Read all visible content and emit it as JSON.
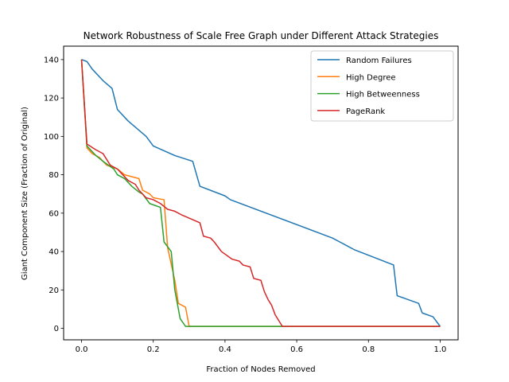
{
  "chart_data": {
    "type": "line",
    "title": "Network Robustness of Scale Free Graph under Different Attack Strategies",
    "xlabel": "Fraction of Nodes Removed",
    "ylabel": "Giant Component Size (Fraction of Original)",
    "xlim": [
      -0.05,
      1.05
    ],
    "ylim": [
      -6,
      147
    ],
    "xticks": [
      0.0,
      0.2,
      0.4,
      0.6,
      0.8,
      1.0
    ],
    "xtick_labels": [
      "0.0",
      "0.2",
      "0.4",
      "0.6",
      "0.8",
      "1.0"
    ],
    "yticks": [
      0,
      20,
      40,
      60,
      80,
      100,
      120,
      140
    ],
    "ytick_labels": [
      "0",
      "20",
      "40",
      "60",
      "80",
      "100",
      "120",
      "140"
    ],
    "grid": false,
    "legend_position": "top-right",
    "series": [
      {
        "name": "Random Failures",
        "color": "#1f77b4",
        "points": [
          [
            0.0,
            140
          ],
          [
            0.015,
            139
          ],
          [
            0.03,
            135
          ],
          [
            0.06,
            129
          ],
          [
            0.085,
            125
          ],
          [
            0.1,
            114
          ],
          [
            0.13,
            108
          ],
          [
            0.18,
            100
          ],
          [
            0.2,
            95
          ],
          [
            0.26,
            90
          ],
          [
            0.31,
            87
          ],
          [
            0.33,
            74
          ],
          [
            0.4,
            69
          ],
          [
            0.415,
            67
          ],
          [
            0.7,
            47
          ],
          [
            0.72,
            45
          ],
          [
            0.74,
            43
          ],
          [
            0.76,
            41
          ],
          [
            0.87,
            33
          ],
          [
            0.88,
            17
          ],
          [
            0.94,
            13
          ],
          [
            0.95,
            8
          ],
          [
            0.98,
            6
          ],
          [
            1.0,
            1
          ]
        ]
      },
      {
        "name": "High Degree",
        "color": "#ff7f0e",
        "points": [
          [
            0.0,
            140
          ],
          [
            0.015,
            94
          ],
          [
            0.03,
            91
          ],
          [
            0.05,
            89
          ],
          [
            0.07,
            85
          ],
          [
            0.1,
            83
          ],
          [
            0.12,
            80
          ],
          [
            0.16,
            78
          ],
          [
            0.17,
            72
          ],
          [
            0.19,
            70
          ],
          [
            0.2,
            68
          ],
          [
            0.23,
            67
          ],
          [
            0.24,
            42
          ],
          [
            0.26,
            25
          ],
          [
            0.27,
            13
          ],
          [
            0.29,
            11
          ],
          [
            0.3,
            1
          ],
          [
            1.0,
            1
          ]
        ]
      },
      {
        "name": "High Betweenness",
        "color": "#2ca02c",
        "points": [
          [
            0.0,
            140
          ],
          [
            0.015,
            95
          ],
          [
            0.04,
            90
          ],
          [
            0.06,
            87
          ],
          [
            0.09,
            83
          ],
          [
            0.1,
            80
          ],
          [
            0.12,
            78
          ],
          [
            0.14,
            74
          ],
          [
            0.16,
            71
          ],
          [
            0.17,
            70
          ],
          [
            0.19,
            65
          ],
          [
            0.22,
            63
          ],
          [
            0.23,
            45
          ],
          [
            0.25,
            40
          ],
          [
            0.26,
            20
          ],
          [
            0.275,
            5
          ],
          [
            0.29,
            1
          ],
          [
            1.0,
            1
          ]
        ]
      },
      {
        "name": "PageRank",
        "color": "#d62728",
        "points": [
          [
            0.0,
            140
          ],
          [
            0.015,
            96
          ],
          [
            0.04,
            93
          ],
          [
            0.06,
            91
          ],
          [
            0.08,
            85
          ],
          [
            0.1,
            83
          ],
          [
            0.11,
            81
          ],
          [
            0.13,
            77
          ],
          [
            0.15,
            75
          ],
          [
            0.16,
            72
          ],
          [
            0.18,
            68
          ],
          [
            0.2,
            67
          ],
          [
            0.22,
            65
          ],
          [
            0.24,
            62
          ],
          [
            0.26,
            61
          ],
          [
            0.28,
            59
          ],
          [
            0.33,
            55
          ],
          [
            0.34,
            48
          ],
          [
            0.36,
            47
          ],
          [
            0.37,
            45
          ],
          [
            0.39,
            40
          ],
          [
            0.42,
            36
          ],
          [
            0.44,
            35
          ],
          [
            0.45,
            33
          ],
          [
            0.47,
            32
          ],
          [
            0.48,
            26
          ],
          [
            0.5,
            25
          ],
          [
            0.51,
            19
          ],
          [
            0.52,
            15
          ],
          [
            0.53,
            12
          ],
          [
            0.54,
            7
          ],
          [
            0.56,
            1
          ],
          [
            1.0,
            1
          ]
        ]
      }
    ]
  }
}
